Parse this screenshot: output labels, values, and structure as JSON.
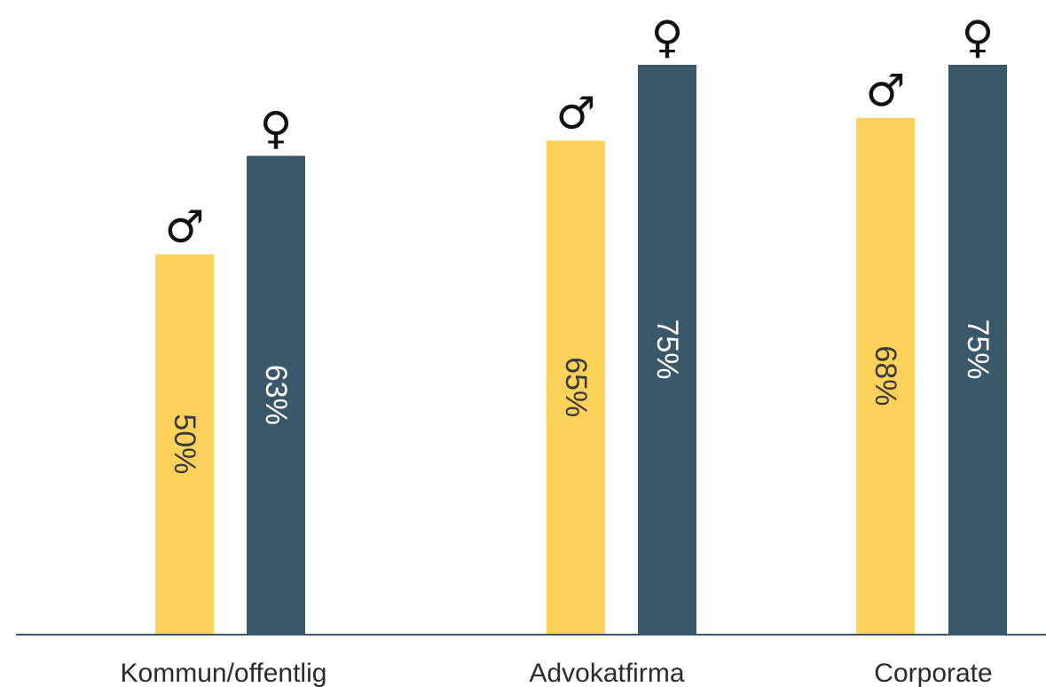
{
  "chart_data": {
    "type": "bar",
    "categories": [
      "Kommun/offentlig",
      "Advokatfirma",
      "Corporate"
    ],
    "series": [
      {
        "symbol": "♂",
        "color": "#fcd25a",
        "label_color": "#3a3a3a",
        "values": [
          50,
          65,
          68
        ],
        "labels": [
          "50%",
          "65%",
          "68%"
        ]
      },
      {
        "symbol": "♀",
        "color": "#3b586b",
        "label_color": "#ffffff",
        "values": [
          63,
          75,
          75
        ],
        "labels": [
          "63%",
          "75%",
          "75%"
        ]
      }
    ],
    "ylim": [
      0,
      75
    ],
    "grid": false,
    "legend": "none",
    "xlabel": "",
    "ylabel": "",
    "title": ""
  }
}
